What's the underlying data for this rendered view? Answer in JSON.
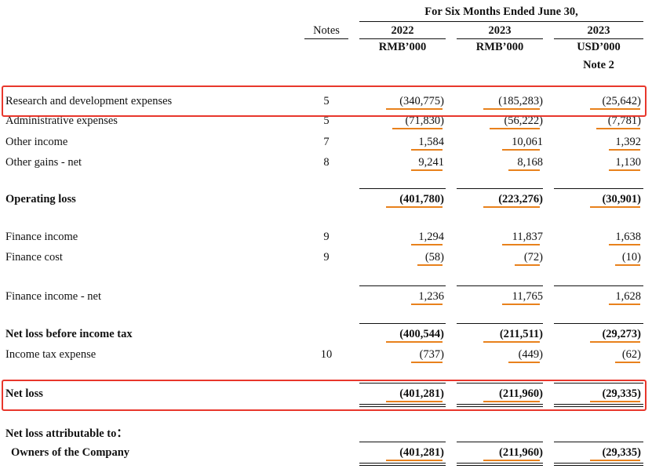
{
  "header": {
    "period": "For Six Months Ended June 30,",
    "notes_label": "Notes",
    "columns": [
      {
        "year": "2022",
        "unit": "RMB’000",
        "sub": ""
      },
      {
        "year": "2023",
        "unit": "RMB’000",
        "sub": ""
      },
      {
        "year": "2023",
        "unit": "USD’000",
        "sub": "Note 2"
      }
    ]
  },
  "rows": [
    {
      "label": "Research and development expenses",
      "note": "5",
      "v": [
        "(340,775)",
        "(185,283)",
        "(25,642)"
      ]
    },
    {
      "label": "Administrative expenses",
      "note": "5",
      "v": [
        "(71,830)",
        "(56,222)",
        "(7,781)"
      ]
    },
    {
      "label": "Other income",
      "note": "7",
      "v": [
        "1,584",
        "10,061",
        "1,392"
      ]
    },
    {
      "label": "Other gains - net",
      "note": "8",
      "v": [
        "9,241",
        "8,168",
        "1,130"
      ]
    },
    {
      "label": "Operating loss",
      "note": "",
      "v": [
        "(401,780)",
        "(223,276)",
        "(30,901)"
      ]
    },
    {
      "label": "Finance income",
      "note": "9",
      "v": [
        "1,294",
        "11,837",
        "1,638"
      ]
    },
    {
      "label": "Finance cost",
      "note": "9",
      "v": [
        "(58)",
        "(72)",
        "(10)"
      ]
    },
    {
      "label": "Finance income - net",
      "note": "",
      "v": [
        "1,236",
        "11,765",
        "1,628"
      ]
    },
    {
      "label": "Net loss before income tax",
      "note": "",
      "v": [
        "(400,544)",
        "(211,511)",
        "(29,273)"
      ]
    },
    {
      "label": "Income tax expense",
      "note": "10",
      "v": [
        "(737)",
        "(449)",
        "(62)"
      ]
    },
    {
      "label": "Net loss",
      "note": "",
      "v": [
        "(401,281)",
        "(211,960)",
        "(29,335)"
      ]
    },
    {
      "label": "Net loss attributable to：",
      "note": "",
      "v": [
        "",
        "",
        ""
      ]
    },
    {
      "label": "Owners of the Company",
      "note": "",
      "v": [
        "(401,281)",
        "(211,960)",
        "(29,335)"
      ]
    }
  ],
  "colors": {
    "highlight_box": "#e8372c",
    "token_underline": "#e8811c"
  }
}
